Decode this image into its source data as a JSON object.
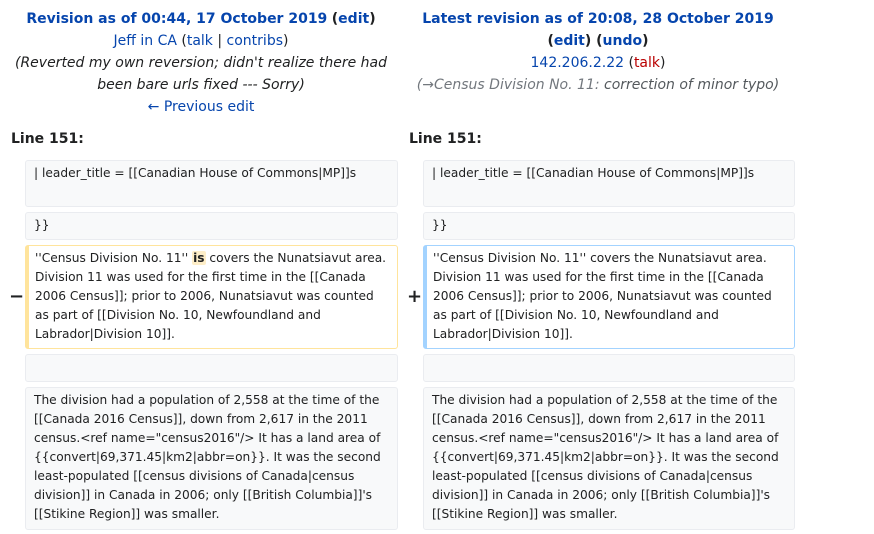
{
  "left_header": {
    "title": "Revision as of 00:44, 17 October 2019",
    "edit_link": "edit",
    "user": "Jeff in CA",
    "talk_link": "talk",
    "contribs_link": "contribs",
    "summary_line1": "(Reverted my own reversion; didn't realize there had",
    "summary_line2": "been bare urls fixed --- Sorry)",
    "previous_edit": "← Previous edit"
  },
  "right_header": {
    "title": "Latest revision as of 20:08, 28 October 2019",
    "edit_link": "edit",
    "undo_link": "undo",
    "user": "142.206.2.22",
    "talk_link": "talk",
    "section_link": "(→Census Division No. 11:",
    "summary_text": "correction of minor typo)"
  },
  "line_label_left": "Line 151:",
  "line_label_right": "Line 151:",
  "markers": {
    "minus": "−",
    "plus": "+"
  },
  "left_cells": {
    "c1": "| leader_title            = [[Canadian House of Commons|MP]]s",
    "c2": "}}",
    "c3_before": "''Census Division No. 11'' ",
    "c3_highlight": "is",
    "c3_after": " covers the Nunatsiavut area. Division 11 was used for the first time in the [[Canada 2006 Census]]; prior to 2006, Nunatsiavut was counted as part of [[Division No. 10, Newfoundland and Labrador|Division 10]].",
    "c4": "",
    "c5": "The division had a population of 2,558 at the time of the [[Canada 2016 Census]], down from 2,617 in the 2011 census.<ref name=\"census2016\"/> It has a land area of {{convert|69,371.45|km2|abbr=on}}. It was the second least-populated [[census divisions of Canada|census division]] in Canada in 2006; only [[British Columbia]]'s [[Stikine Region]] was smaller."
  },
  "right_cells": {
    "c1": "| leader_title            = [[Canadian House of Commons|MP]]s",
    "c2": "}}",
    "c3": "''Census Division No. 11'' covers the Nunatsiavut area. Division 11 was used for the first time in the [[Canada 2006 Census]]; prior to 2006, Nunatsiavut was counted as part of [[Division No. 10, Newfoundland and Labrador|Division 10]].",
    "c4": "",
    "c5": "The division had a population of 2,558 at the time of the [[Canada 2016 Census]], down from 2,617 in the 2011 census.<ref name=\"census2016\"/> It has a land area of {{convert|69,371.45|km2|abbr=on}}. It was the second least-populated [[census divisions of Canada|census division]] in Canada in 2006; only [[British Columbia]]'s [[Stikine Region]] was smaller."
  }
}
